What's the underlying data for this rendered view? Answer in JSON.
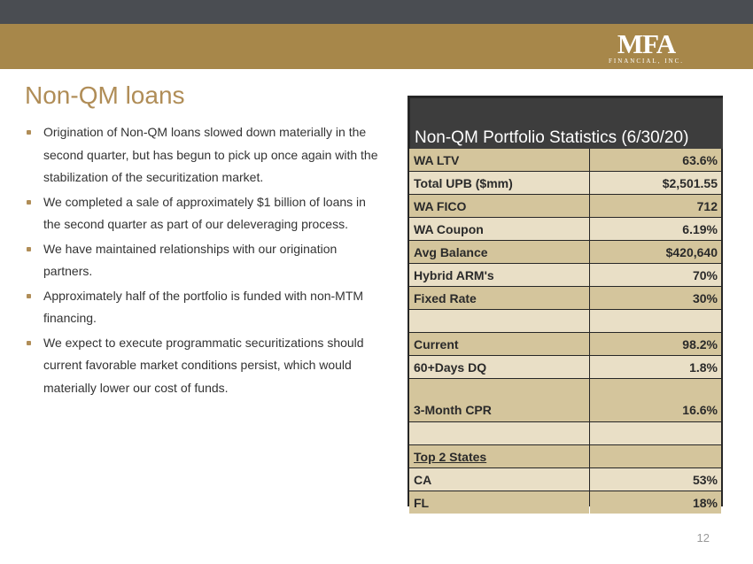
{
  "header": {
    "logo_text": "MFA",
    "logo_subtext": "FINANCIAL, INC."
  },
  "slide": {
    "title": "Non-QM loans",
    "bullets": [
      "Origination of Non-QM loans slowed down materially in the second quarter, but has begun to pick up once again with the stabilization of the securitization market.",
      "We completed a sale of approximately $1 billion of loans in the second quarter as part of our deleveraging process.",
      "We have maintained relationships with our origination partners.",
      "Approximately half of the portfolio is funded with non-MTM financing.",
      "We expect to execute programmatic securitizations should current favorable market conditions persist, which would materially lower our cost of funds."
    ],
    "page_number": "12"
  },
  "table": {
    "title": "Non-QM Portfolio Statistics (6/30/20)",
    "rows": [
      {
        "label": "WA LTV",
        "value": "63.6%"
      },
      {
        "label": "Total UPB ($mm)",
        "value": "$2,501.55"
      },
      {
        "label": "WA FICO",
        "value": "712"
      },
      {
        "label": "WA Coupon",
        "value": "6.19%"
      },
      {
        "label": "Avg Balance",
        "value": "$420,640"
      },
      {
        "label": "Hybrid ARM's",
        "value": "70%"
      },
      {
        "label": "Fixed Rate",
        "value": "30%"
      },
      {
        "label": "",
        "value": ""
      },
      {
        "label": "Current",
        "value": "98.2%"
      },
      {
        "label": "60+Days DQ",
        "value": "1.8%"
      },
      {
        "label": "3-Month CPR",
        "value": "16.6%"
      },
      {
        "label": "",
        "value": ""
      },
      {
        "label": "Top 2 States",
        "value": ""
      },
      {
        "label": "CA",
        "value": "53%"
      },
      {
        "label": "FL",
        "value": "18%"
      }
    ]
  }
}
